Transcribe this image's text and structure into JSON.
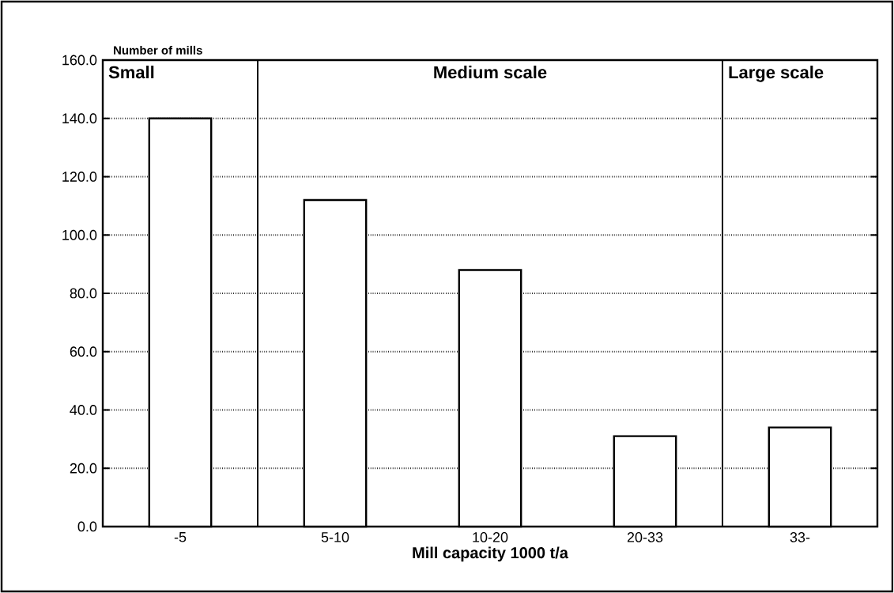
{
  "chart_data": {
    "type": "bar",
    "xlabel": "Mill capacity 1000 t/a",
    "ylabel": "Number of mills",
    "categories": [
      "-5",
      "5-10",
      "10-20",
      "20-33",
      "33-"
    ],
    "values": [
      140,
      112,
      88,
      31,
      34
    ],
    "color": "#ffffff",
    "ylim": [
      0,
      160
    ],
    "yticks": [
      {
        "value": 0,
        "label": "0.0"
      },
      {
        "value": 20,
        "label": "20.0"
      },
      {
        "value": 40,
        "label": "40.0"
      },
      {
        "value": 60,
        "label": "60.0"
      },
      {
        "value": 80,
        "label": "80.0"
      },
      {
        "value": 100,
        "label": "100.0"
      },
      {
        "value": 120,
        "label": "120.0"
      },
      {
        "value": 140,
        "label": "140.0"
      },
      {
        "value": 160,
        "label": "160.0"
      }
    ],
    "grid": "y",
    "line_style": "dotted",
    "annotations": [
      "Small",
      "Medium scale",
      "Large scale"
    ]
  }
}
